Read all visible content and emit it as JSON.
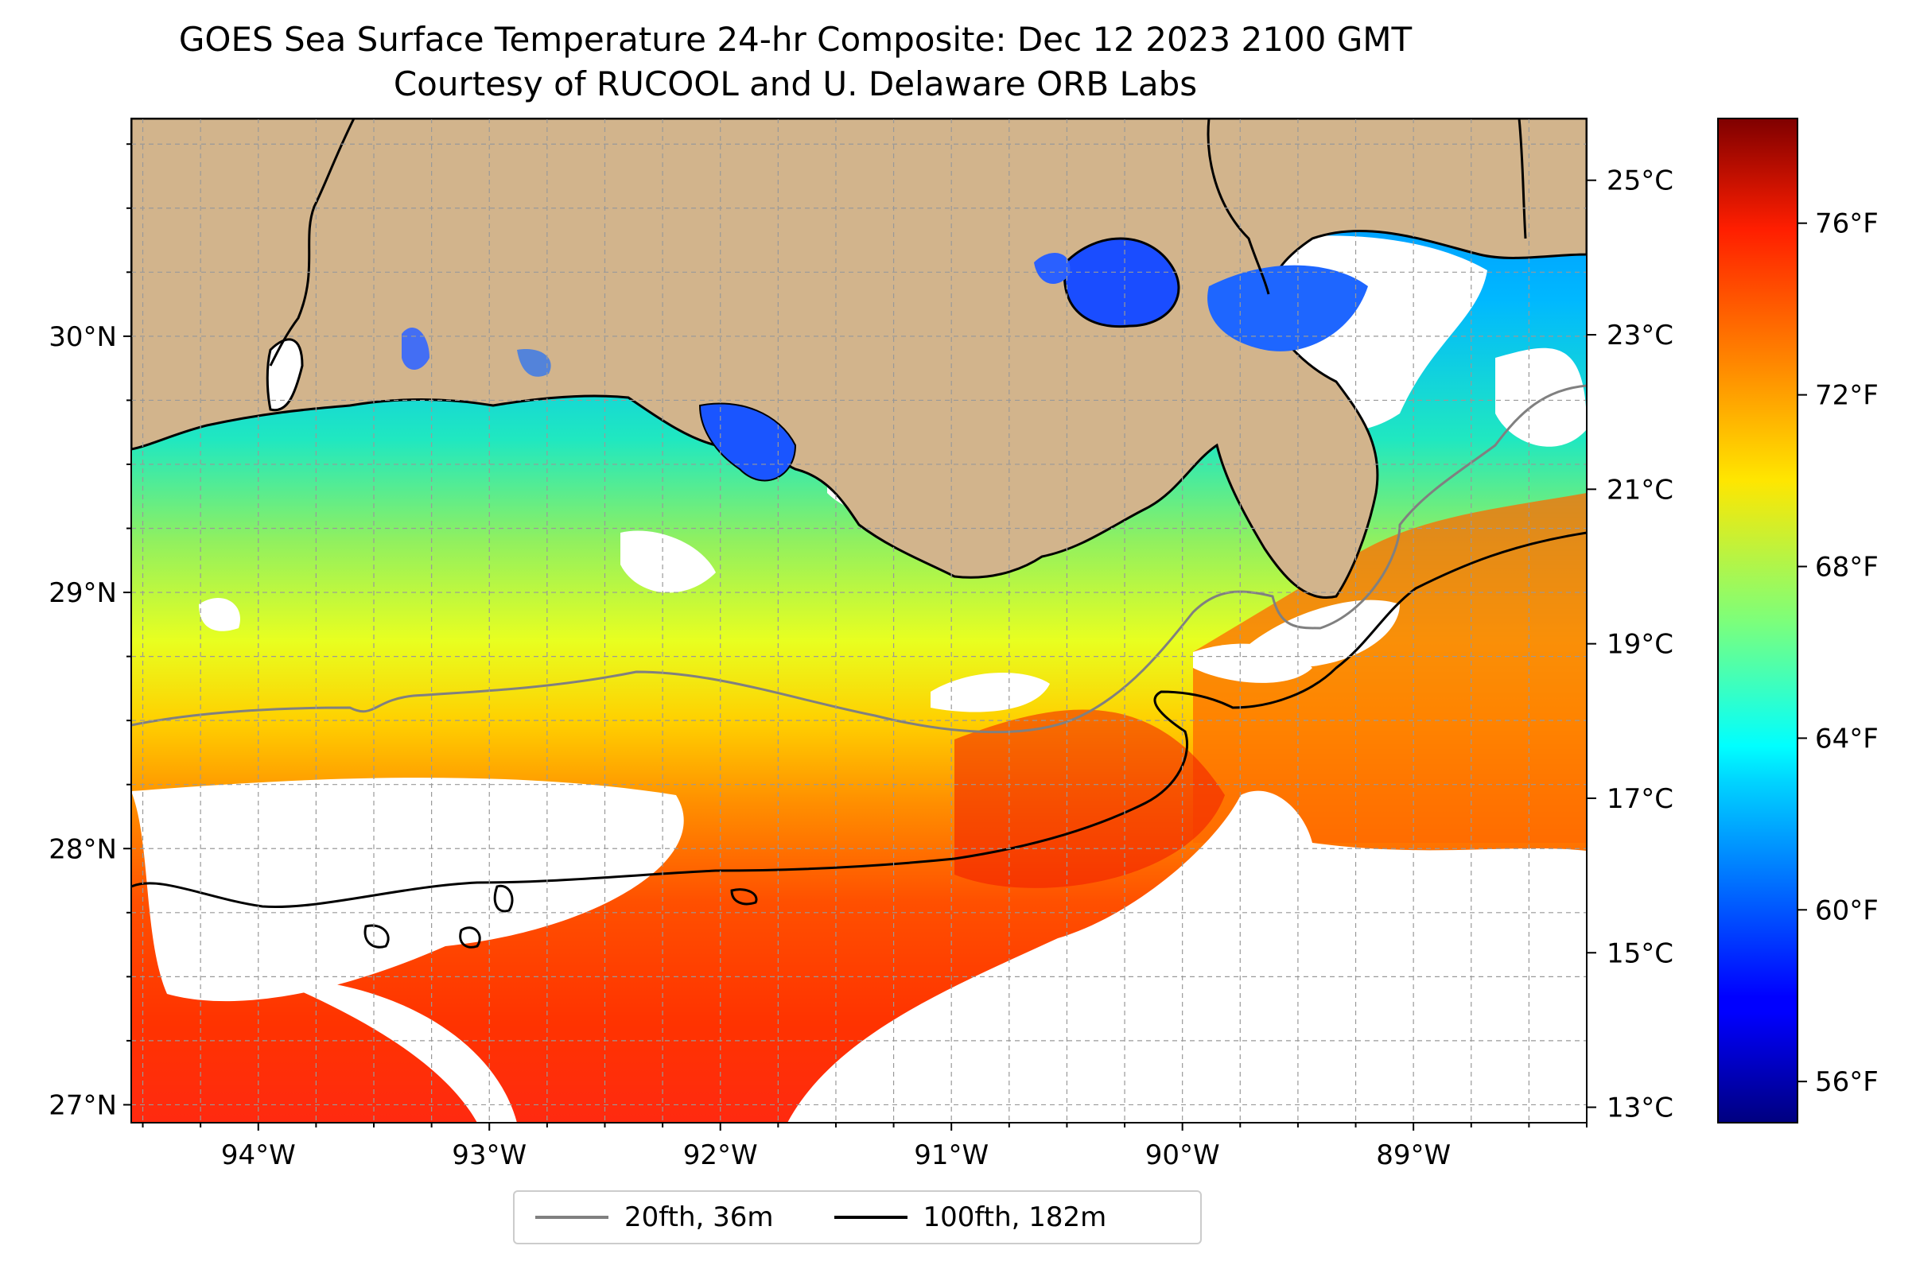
{
  "title": {
    "line1": "GOES Sea Surface Temperature 24-hr Composite: Dec 12 2023 2100 GMT",
    "line2": "Courtesy of RUCOOL and U. Delaware ORB Labs"
  },
  "map": {
    "lon_range": [
      -94.55,
      -88.25
    ],
    "lat_range": [
      26.93,
      30.85
    ],
    "lon_ticks": [
      "94°W",
      "93°W",
      "92°W",
      "91°W",
      "90°W",
      "89°W"
    ],
    "lat_ticks": [
      "30°N",
      "29°N",
      "28°N",
      "27°N"
    ],
    "land_color": "#d2b48c",
    "no_data_color": "#ffffff",
    "grid": "dashed, every 0.25°"
  },
  "colorbar": {
    "colormap": "jet",
    "celsius_ticks": [
      "25°C",
      "23°C",
      "21°C",
      "19°C",
      "17°C",
      "15°C",
      "13°C"
    ],
    "fahrenheit_ticks": [
      "76°F",
      "72°F",
      "68°F",
      "64°F",
      "60°F",
      "56°F"
    ]
  },
  "legend": {
    "items": [
      {
        "label": "20fth, 36m",
        "color": "#808080"
      },
      {
        "label": "100fth, 182m",
        "color": "#000000"
      }
    ]
  }
}
